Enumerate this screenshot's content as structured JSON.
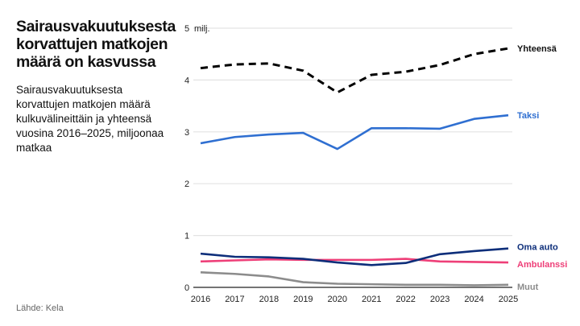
{
  "title": "Sairausvakuutuksesta korvattujen matkojen määrä on kasvussa",
  "subtitle": "Sairausvakuutuksesta korvattujen matkojen määrä kulkuvälineittäin ja yhteensä vuosina 2016–2025, miljoonaa matkaa",
  "source": "Lähde: Kela",
  "chart_data": {
    "type": "line",
    "x": [
      2016,
      2017,
      2018,
      2019,
      2020,
      2021,
      2022,
      2023,
      2024,
      2025
    ],
    "ylim": [
      0,
      5
    ],
    "yticks": [
      0,
      1,
      2,
      3,
      4,
      5
    ],
    "yunit": "milj.",
    "grid": true,
    "legend": "direct labels at line ends (right)",
    "series": [
      {
        "name": "Yhteensä",
        "color": "#000000",
        "dashed": true,
        "values": [
          4.23,
          4.3,
          4.32,
          4.18,
          3.76,
          4.1,
          4.16,
          4.29,
          4.5,
          4.61
        ]
      },
      {
        "name": "Taksi",
        "color": "#2f6fd1",
        "values": [
          2.78,
          2.9,
          2.95,
          2.98,
          2.67,
          3.07,
          3.07,
          3.06,
          3.25,
          3.32
        ]
      },
      {
        "name": "Oma auto",
        "color": "#0d2e7a",
        "values": [
          0.65,
          0.59,
          0.58,
          0.55,
          0.48,
          0.43,
          0.47,
          0.64,
          0.7,
          0.75
        ]
      },
      {
        "name": "Ambulanssi",
        "color": "#ee3f78",
        "values": [
          0.5,
          0.52,
          0.54,
          0.53,
          0.53,
          0.53,
          0.55,
          0.5,
          0.49,
          0.48
        ]
      },
      {
        "name": "Muut",
        "color": "#8c8c8c",
        "values": [
          0.29,
          0.26,
          0.21,
          0.1,
          0.07,
          0.06,
          0.05,
          0.05,
          0.04,
          0.05
        ]
      }
    ]
  }
}
